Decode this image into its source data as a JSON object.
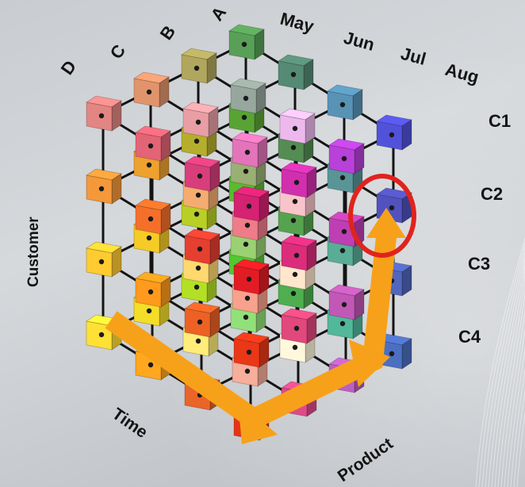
{
  "labels": {
    "product_letters": [
      "D",
      "C",
      "B",
      "A"
    ],
    "months": [
      "May",
      "Jun",
      "Jul",
      "Aug"
    ],
    "customers": [
      "C1",
      "C2",
      "C3",
      "C4"
    ],
    "axis_customer": "Customer",
    "axis_time": "Time",
    "axis_product": "Product"
  },
  "colors": {
    "background": "#cfd2d6",
    "arrow": "#f7a11a",
    "highlight_ring": "#e0231d",
    "rod": "#141414"
  },
  "cube": {
    "grid_size": 4,
    "highlighted_cell": "Jul / C2"
  }
}
